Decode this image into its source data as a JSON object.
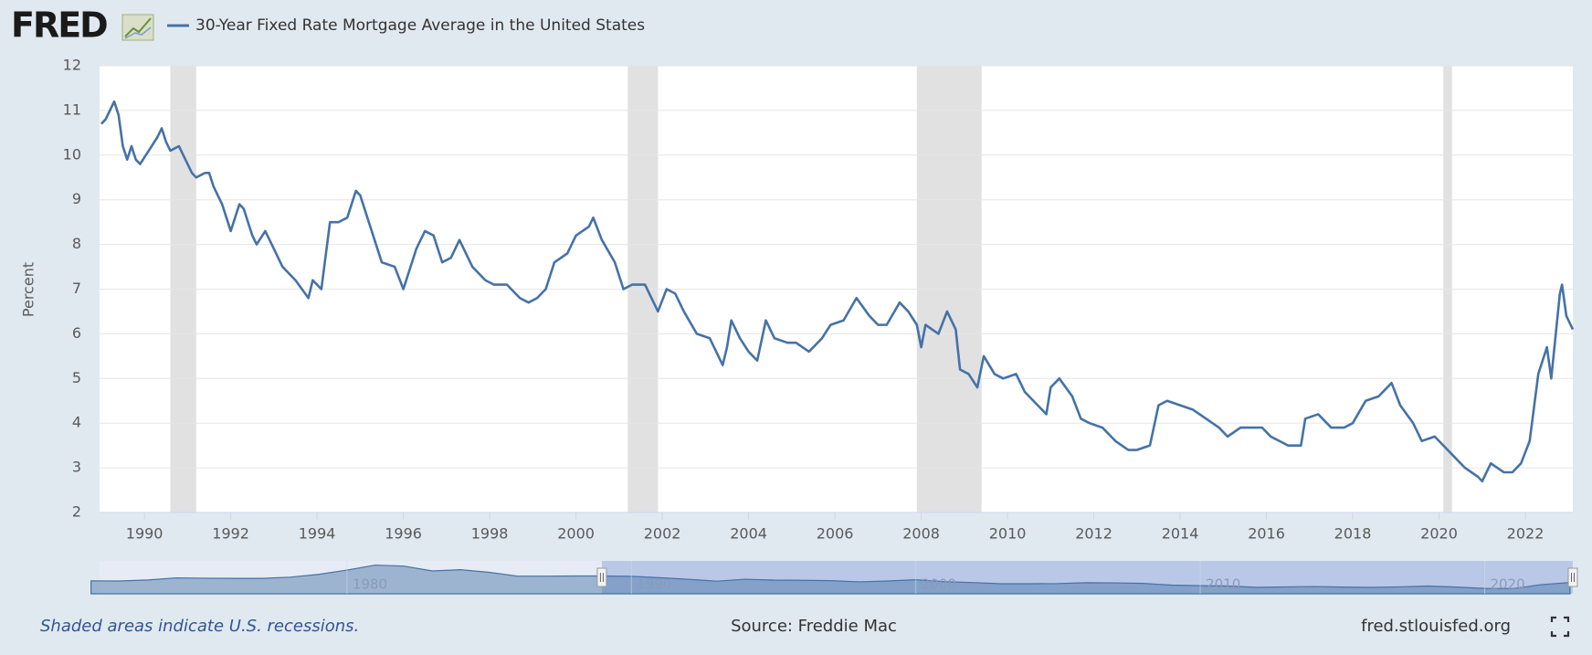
{
  "header": {
    "logo": "FRED"
  },
  "chart_data": [
    {
      "type": "line",
      "y_label": "Percent",
      "xlim": [
        1988.96,
        2023.1
      ],
      "xticks": [
        1990,
        1992,
        1994,
        1996,
        1998,
        2000,
        2002,
        2004,
        2006,
        2008,
        2010,
        2012,
        2014,
        2016,
        2018,
        2020,
        2022
      ],
      "ylim": [
        2,
        12
      ],
      "yticks": [
        2,
        3,
        4,
        5,
        6,
        7,
        8,
        9,
        10,
        11,
        12
      ],
      "grid": true,
      "recession_color": "#e1e1e1",
      "recessions": [
        {
          "start": 1990.6,
          "end": 1991.2
        },
        {
          "start": 2001.2,
          "end": 2001.9
        },
        {
          "start": 2007.9,
          "end": 2009.4
        },
        {
          "start": 2020.1,
          "end": 2020.3
        }
      ],
      "x": [
        1989.0,
        1989.1,
        1989.2,
        1989.3,
        1989.4,
        1989.5,
        1989.6,
        1989.7,
        1989.8,
        1989.9,
        1990.1,
        1990.3,
        1990.4,
        1990.5,
        1990.6,
        1990.8,
        1990.9,
        1991.1,
        1991.2,
        1991.4,
        1991.5,
        1991.6,
        1991.8,
        1992.0,
        1992.2,
        1992.3,
        1992.5,
        1992.6,
        1992.8,
        1993.0,
        1993.2,
        1993.5,
        1993.8,
        1993.9,
        1994.1,
        1994.3,
        1994.5,
        1994.7,
        1994.9,
        1995.0,
        1995.3,
        1995.5,
        1995.8,
        1996.0,
        1996.3,
        1996.5,
        1996.7,
        1996.9,
        1997.1,
        1997.3,
        1997.6,
        1997.9,
        1998.1,
        1998.4,
        1998.7,
        1998.9,
        1999.1,
        1999.3,
        1999.5,
        1999.8,
        2000.0,
        2000.3,
        2000.4,
        2000.6,
        2000.9,
        2001.1,
        2001.3,
        2001.6,
        2001.9,
        2002.1,
        2002.3,
        2002.5,
        2002.8,
        2003.1,
        2003.4,
        2003.5,
        2003.6,
        2003.8,
        2004.0,
        2004.2,
        2004.4,
        2004.6,
        2004.9,
        2005.1,
        2005.4,
        2005.7,
        2005.9,
        2006.2,
        2006.5,
        2006.8,
        2007.0,
        2007.2,
        2007.5,
        2007.7,
        2007.9,
        2008.0,
        2008.1,
        2008.4,
        2008.6,
        2008.8,
        2008.9,
        2009.1,
        2009.3,
        2009.45,
        2009.7,
        2009.9,
        2010.2,
        2010.4,
        2010.7,
        2010.9,
        2011.0,
        2011.2,
        2011.5,
        2011.7,
        2011.9,
        2012.2,
        2012.5,
        2012.8,
        2013.0,
        2013.3,
        2013.5,
        2013.7,
        2014.0,
        2014.3,
        2014.6,
        2014.9,
        2015.1,
        2015.4,
        2015.7,
        2015.9,
        2016.1,
        2016.5,
        2016.8,
        2016.9,
        2017.2,
        2017.5,
        2017.8,
        2018.0,
        2018.3,
        2018.6,
        2018.9,
        2019.1,
        2019.4,
        2019.6,
        2019.9,
        2020.1,
        2020.3,
        2020.6,
        2020.9,
        2021.0,
        2021.2,
        2021.5,
        2021.7,
        2021.9,
        2022.1,
        2022.3,
        2022.5,
        2022.6,
        2022.8,
        2022.85,
        2022.95,
        2023.1
      ],
      "series": [
        {
          "name": "30-Year Fixed Rate Mortgage Average in the United States",
          "color": "#4572a7",
          "values": [
            10.7,
            10.8,
            11.0,
            11.2,
            10.9,
            10.2,
            9.9,
            10.2,
            9.9,
            9.8,
            10.1,
            10.4,
            10.6,
            10.3,
            10.1,
            10.2,
            10.0,
            9.6,
            9.5,
            9.6,
            9.6,
            9.3,
            8.9,
            8.3,
            8.9,
            8.8,
            8.2,
            8.0,
            8.3,
            7.9,
            7.5,
            7.2,
            6.8,
            7.2,
            7.0,
            8.5,
            8.5,
            8.6,
            9.2,
            9.1,
            8.2,
            7.6,
            7.5,
            7.0,
            7.9,
            8.3,
            8.2,
            7.6,
            7.7,
            8.1,
            7.5,
            7.2,
            7.1,
            7.1,
            6.8,
            6.7,
            6.8,
            7.0,
            7.6,
            7.8,
            8.2,
            8.4,
            8.6,
            8.1,
            7.6,
            7.0,
            7.1,
            7.1,
            6.5,
            7.0,
            6.9,
            6.5,
            6.0,
            5.9,
            5.3,
            5.7,
            6.3,
            5.9,
            5.6,
            5.4,
            6.3,
            5.9,
            5.8,
            5.8,
            5.6,
            5.9,
            6.2,
            6.3,
            6.8,
            6.4,
            6.2,
            6.2,
            6.7,
            6.5,
            6.2,
            5.7,
            6.2,
            6.0,
            6.5,
            6.1,
            5.2,
            5.1,
            4.8,
            5.5,
            5.1,
            5.0,
            5.1,
            4.7,
            4.4,
            4.2,
            4.8,
            5.0,
            4.6,
            4.1,
            4.0,
            3.9,
            3.6,
            3.4,
            3.4,
            3.5,
            4.4,
            4.5,
            4.4,
            4.3,
            4.1,
            3.9,
            3.7,
            3.9,
            3.9,
            3.9,
            3.7,
            3.5,
            3.5,
            4.1,
            4.2,
            3.9,
            3.9,
            4.0,
            4.5,
            4.6,
            4.9,
            4.4,
            4.0,
            3.6,
            3.7,
            3.5,
            3.3,
            3.0,
            2.8,
            2.7,
            3.1,
            2.9,
            2.9,
            3.1,
            3.6,
            5.1,
            5.7,
            5.0,
            6.9,
            7.1,
            6.4,
            6.1
          ]
        }
      ]
    },
    {
      "type": "area",
      "xlim": [
        1971.3,
        2023.1
      ],
      "xticks": [
        1980,
        1990,
        2000,
        2010,
        2020
      ],
      "ylim": [
        0,
        19
      ],
      "x": [
        1971,
        1972,
        1973,
        1974,
        1975,
        1976,
        1977,
        1978,
        1979,
        1980,
        1981,
        1982,
        1983,
        1984,
        1985,
        1986,
        1987,
        1988,
        1989,
        1990,
        1991,
        1992,
        1993,
        1994,
        1995,
        1996,
        1997,
        1998,
        1999,
        2000,
        2001,
        2002,
        2003,
        2004,
        2005,
        2006,
        2007,
        2008,
        2009,
        2010,
        2011,
        2012,
        2013,
        2014,
        2015,
        2016,
        2017,
        2018,
        2019,
        2020,
        2021,
        2022,
        2023
      ],
      "series": [
        {
          "color": "#4572a7",
          "values": [
            7.5,
            7.4,
            8,
            9.2,
            9,
            8.9,
            8.9,
            9.6,
            11.2,
            13.7,
            16.6,
            16,
            13.2,
            13.9,
            12.4,
            10.2,
            10.2,
            10.3,
            10.3,
            10.1,
            9.3,
            8.4,
            7.3,
            8.4,
            7.9,
            7.8,
            7.6,
            6.9,
            7.4,
            8.1,
            7,
            6.5,
            5.8,
            5.8,
            5.9,
            6.4,
            6.3,
            6.0,
            5.0,
            4.7,
            4.5,
            3.7,
            4.0,
            4.2,
            3.9,
            3.7,
            4.0,
            4.5,
            3.9,
            3.1,
            3.0,
            5.3,
            6.5
          ]
        }
      ]
    }
  ],
  "footer": {
    "note": "Shaded areas indicate U.S. recessions.",
    "source": "Source: Freddie Mac",
    "url": "fred.stlouisfed.org"
  }
}
